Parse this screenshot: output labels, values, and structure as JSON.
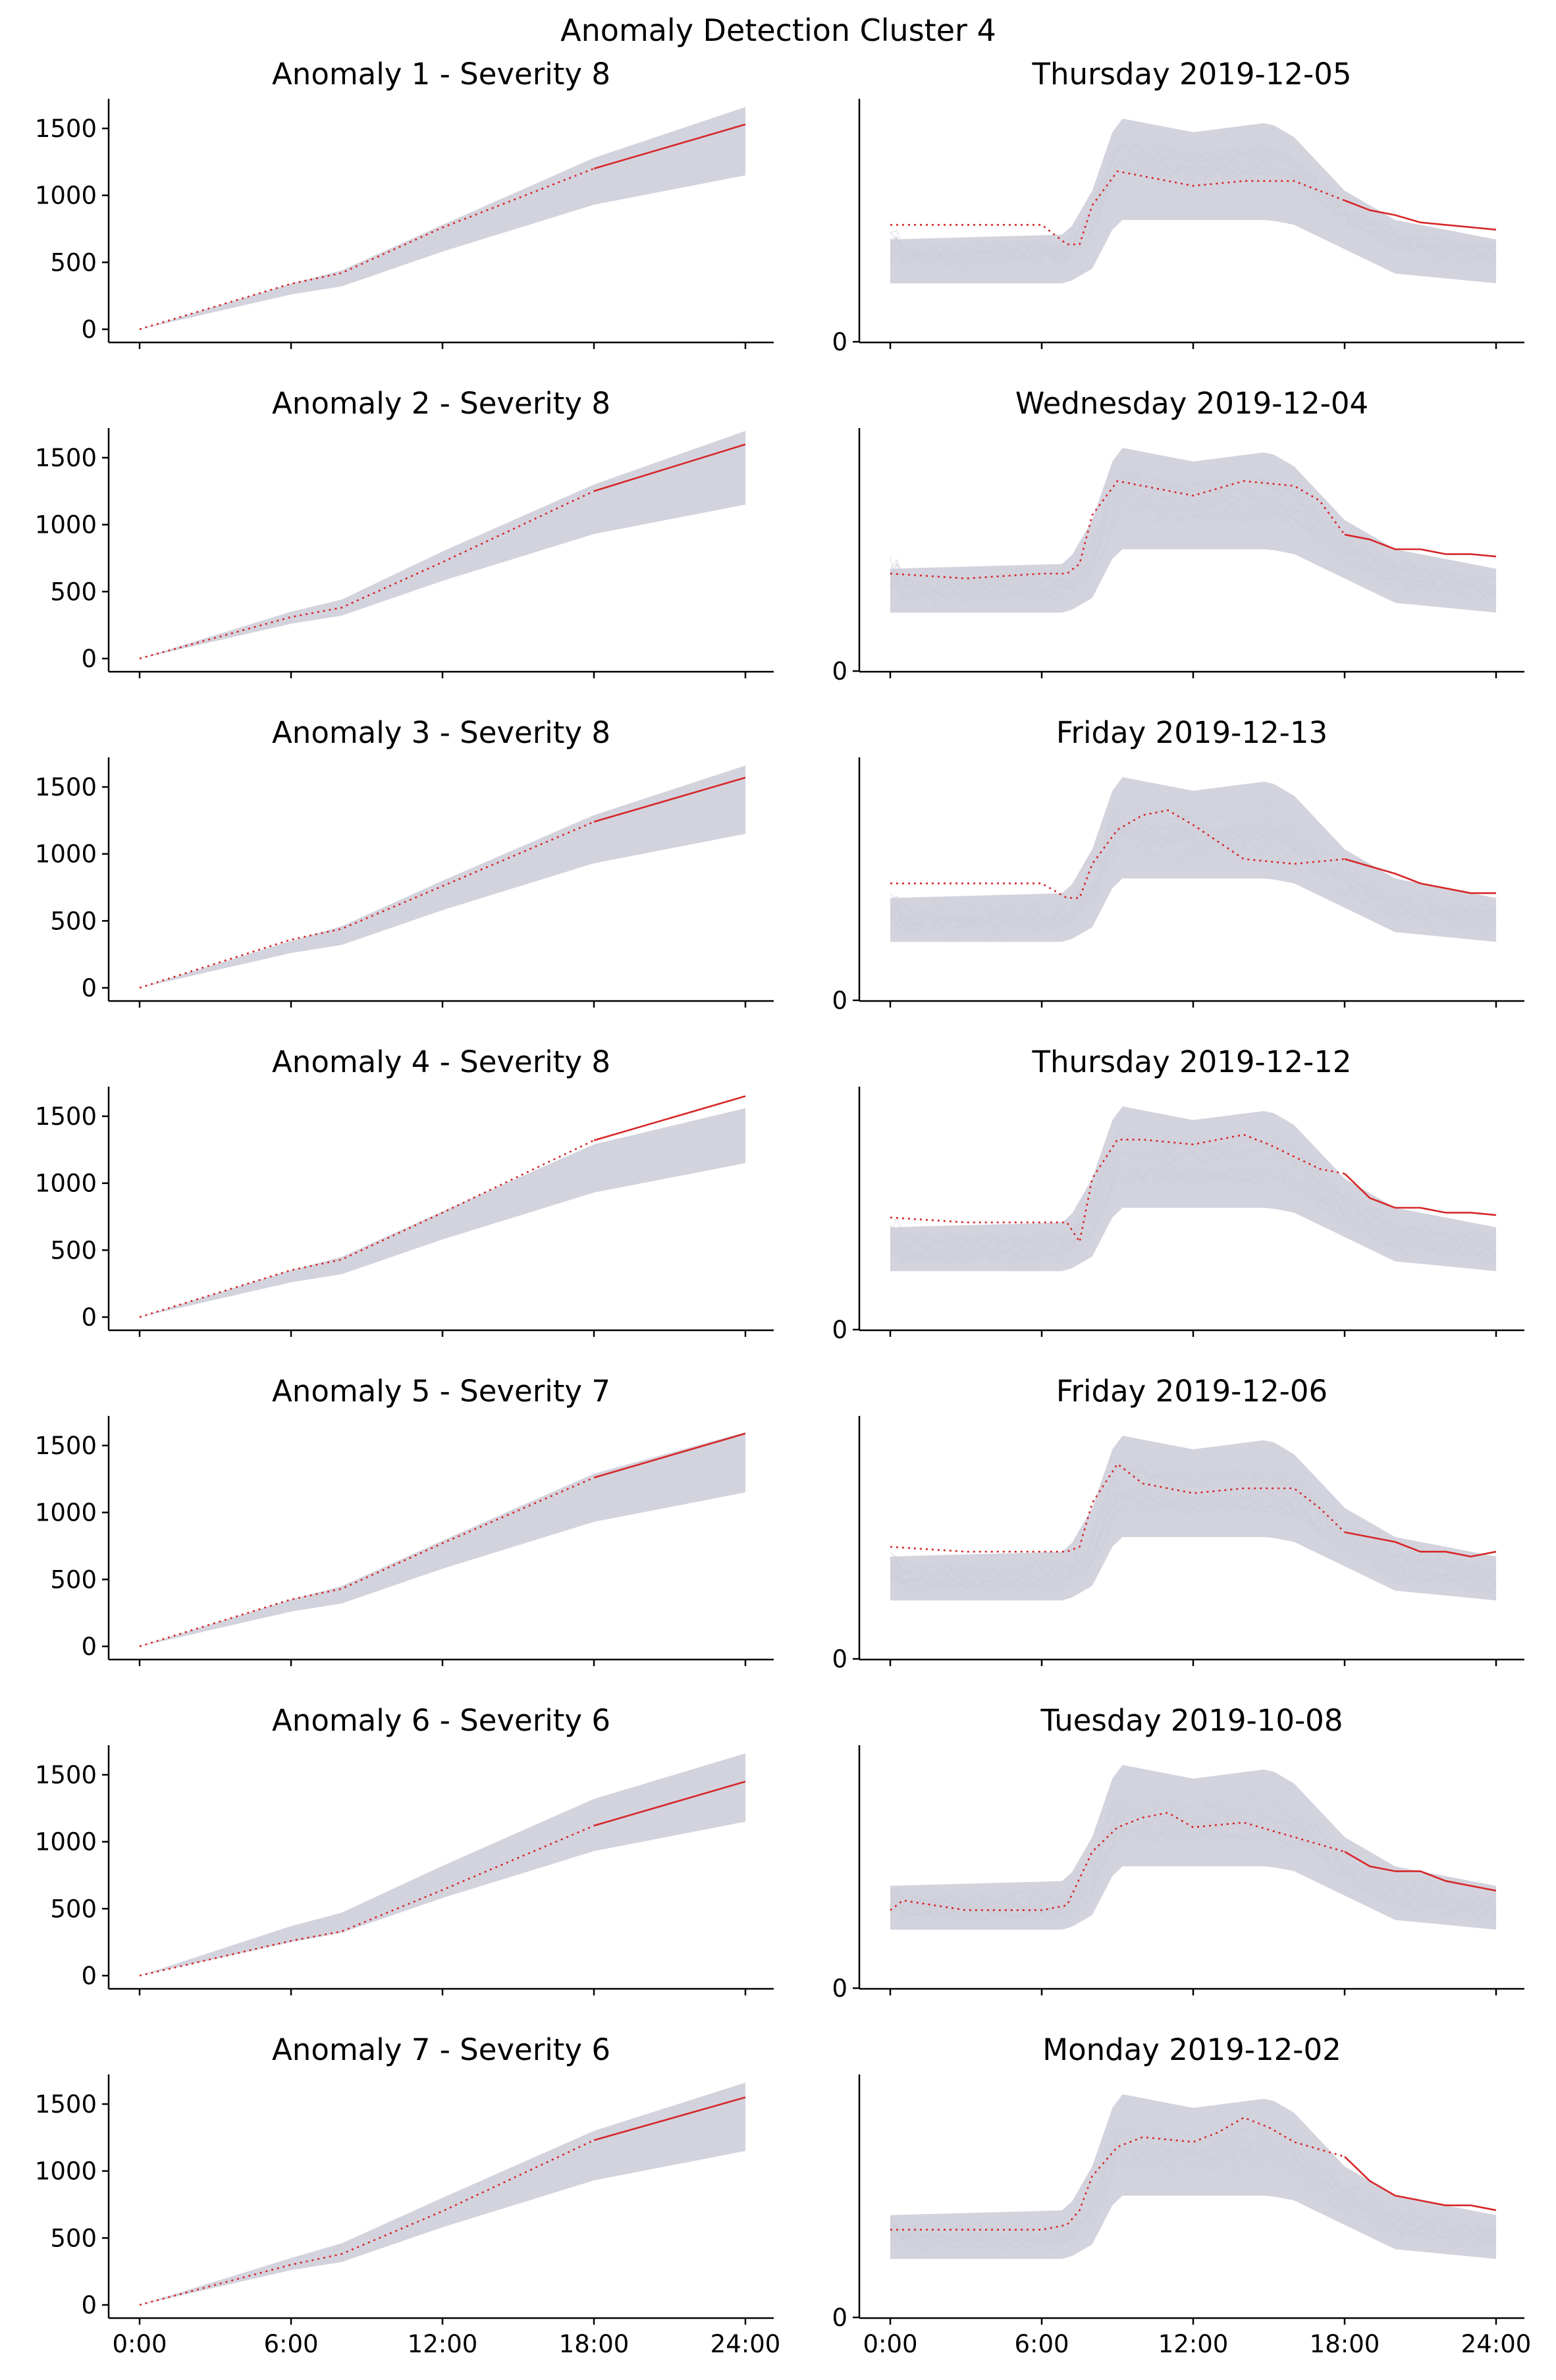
{
  "figure": {
    "suptitle": "Anomaly Detection Cluster 4"
  },
  "colors": {
    "anomaly": "#d62728",
    "history": "#cdcdd8",
    "band": "#d3d3de"
  },
  "chart_data": [
    {
      "panel": "cumulative",
      "type": "line",
      "title": "Anomaly 1 - Severity 8",
      "x": [
        "0:00",
        "6:00",
        "12:00",
        "18:00",
        "24:00"
      ],
      "xlim": [
        0,
        24
      ],
      "ylim": [
        0,
        1750
      ],
      "yticks": [
        0,
        500,
        1000,
        1500
      ],
      "grid": false,
      "band": {
        "x": [
          0,
          6,
          8,
          12,
          18,
          24
        ],
        "lower": [
          0,
          260,
          320,
          580,
          930,
          1150
        ],
        "upper": [
          0,
          340,
          440,
          780,
          1280,
          1660
        ]
      },
      "series": [
        {
          "x": [
            0,
            6,
            8,
            12,
            18,
            24
          ],
          "y": [
            0,
            340,
            420,
            760,
            1200,
            1530
          ],
          "observed_from": 18
        }
      ]
    },
    {
      "panel": "daily",
      "type": "line",
      "title": "Thursday 2019-12-05",
      "xlim": [
        0,
        24
      ],
      "yticks": [
        0
      ],
      "grid": false,
      "band": {
        "x": [
          0,
          7,
          8,
          9,
          12,
          15,
          16,
          18,
          20,
          24
        ],
        "lower": [
          0.24,
          0.24,
          0.3,
          0.5,
          0.5,
          0.5,
          0.48,
          0.38,
          0.28,
          0.24
        ],
        "upper": [
          0.42,
          0.44,
          0.62,
          0.92,
          0.86,
          0.9,
          0.84,
          0.62,
          0.5,
          0.42
        ]
      },
      "series": [
        {
          "x": [
            0,
            3,
            6,
            7,
            7.5,
            8,
            9,
            10,
            12,
            14,
            16,
            17,
            18,
            19,
            20,
            21,
            22,
            23,
            24
          ],
          "y": [
            0.48,
            0.48,
            0.48,
            0.4,
            0.4,
            0.56,
            0.7,
            0.68,
            0.64,
            0.66,
            0.66,
            0.62,
            0.58,
            0.54,
            0.52,
            0.49,
            0.48,
            0.47,
            0.46
          ],
          "observed_from": 18
        }
      ]
    },
    {
      "panel": "cumulative",
      "type": "line",
      "title": "Anomaly 2 - Severity 8",
      "x": [
        "0:00",
        "6:00",
        "12:00",
        "18:00",
        "24:00"
      ],
      "xlim": [
        0,
        24
      ],
      "ylim": [
        0,
        1750
      ],
      "yticks": [
        0,
        500,
        1000,
        1500
      ],
      "grid": false,
      "band": {
        "x": [
          0,
          6,
          8,
          12,
          18,
          24
        ],
        "lower": [
          0,
          260,
          320,
          580,
          930,
          1150
        ],
        "upper": [
          0,
          350,
          440,
          800,
          1300,
          1700
        ]
      },
      "series": [
        {
          "x": [
            0,
            6,
            8,
            12,
            18,
            24
          ],
          "y": [
            0,
            310,
            380,
            720,
            1250,
            1600
          ],
          "observed_from": 18
        }
      ]
    },
    {
      "panel": "daily",
      "type": "line",
      "title": "Wednesday 2019-12-04",
      "xlim": [
        0,
        24
      ],
      "yticks": [
        0
      ],
      "grid": false,
      "band": {
        "x": [
          0,
          7,
          8,
          9,
          12,
          15,
          16,
          18,
          20,
          24
        ],
        "lower": [
          0.24,
          0.24,
          0.3,
          0.5,
          0.5,
          0.5,
          0.48,
          0.38,
          0.28,
          0.24
        ],
        "upper": [
          0.42,
          0.44,
          0.62,
          0.92,
          0.86,
          0.9,
          0.84,
          0.62,
          0.5,
          0.42
        ]
      },
      "series": [
        {
          "x": [
            0,
            3,
            6,
            7,
            7.5,
            8,
            9,
            10,
            12,
            14,
            16,
            17,
            18,
            19,
            20,
            21,
            22,
            23,
            24
          ],
          "y": [
            0.4,
            0.38,
            0.4,
            0.4,
            0.44,
            0.64,
            0.78,
            0.76,
            0.72,
            0.78,
            0.76,
            0.7,
            0.56,
            0.54,
            0.5,
            0.5,
            0.48,
            0.48,
            0.47
          ],
          "observed_from": 18
        }
      ]
    },
    {
      "panel": "cumulative",
      "type": "line",
      "title": "Anomaly 3 - Severity 8",
      "x": [
        "0:00",
        "6:00",
        "12:00",
        "18:00",
        "24:00"
      ],
      "xlim": [
        0,
        24
      ],
      "ylim": [
        0,
        1750
      ],
      "yticks": [
        0,
        500,
        1000,
        1500
      ],
      "grid": false,
      "band": {
        "x": [
          0,
          6,
          8,
          12,
          18,
          24
        ],
        "lower": [
          0,
          260,
          320,
          580,
          930,
          1150
        ],
        "upper": [
          0,
          350,
          460,
          800,
          1290,
          1660
        ]
      },
      "series": [
        {
          "x": [
            0,
            6,
            8,
            12,
            18,
            24
          ],
          "y": [
            0,
            360,
            440,
            760,
            1240,
            1570
          ],
          "observed_from": 18
        }
      ]
    },
    {
      "panel": "daily",
      "type": "line",
      "title": "Friday 2019-12-13",
      "xlim": [
        0,
        24
      ],
      "yticks": [
        0
      ],
      "grid": false,
      "band": {
        "x": [
          0,
          7,
          8,
          9,
          12,
          15,
          16,
          18,
          20,
          24
        ],
        "lower": [
          0.24,
          0.24,
          0.3,
          0.5,
          0.5,
          0.5,
          0.48,
          0.38,
          0.28,
          0.24
        ],
        "upper": [
          0.42,
          0.44,
          0.62,
          0.92,
          0.86,
          0.9,
          0.84,
          0.62,
          0.5,
          0.42
        ]
      },
      "series": [
        {
          "x": [
            0,
            3,
            6,
            7,
            7.5,
            8,
            9,
            10,
            11,
            12,
            14,
            16,
            18,
            19,
            20,
            21,
            22,
            23,
            24
          ],
          "y": [
            0.48,
            0.48,
            0.48,
            0.42,
            0.42,
            0.56,
            0.7,
            0.76,
            0.78,
            0.72,
            0.58,
            0.56,
            0.58,
            0.55,
            0.52,
            0.48,
            0.46,
            0.44,
            0.44
          ],
          "observed_from": 18
        }
      ]
    },
    {
      "panel": "cumulative",
      "type": "line",
      "title": "Anomaly 4 - Severity 8",
      "x": [
        "0:00",
        "6:00",
        "12:00",
        "18:00",
        "24:00"
      ],
      "xlim": [
        0,
        24
      ],
      "ylim": [
        0,
        1750
      ],
      "yticks": [
        0,
        500,
        1000,
        1500
      ],
      "grid": false,
      "band": {
        "x": [
          0,
          6,
          8,
          12,
          18,
          24
        ],
        "lower": [
          0,
          260,
          320,
          580,
          930,
          1150
        ],
        "upper": [
          0,
          350,
          450,
          790,
          1290,
          1560
        ]
      },
      "series": [
        {
          "x": [
            0,
            6,
            8,
            12,
            18,
            24
          ],
          "y": [
            0,
            350,
            430,
            780,
            1320,
            1650
          ],
          "observed_from": 18
        }
      ]
    },
    {
      "panel": "daily",
      "type": "line",
      "title": "Thursday 2019-12-12",
      "xlim": [
        0,
        24
      ],
      "yticks": [
        0
      ],
      "grid": false,
      "band": {
        "x": [
          0,
          7,
          8,
          9,
          12,
          15,
          16,
          18,
          20,
          24
        ],
        "lower": [
          0.24,
          0.24,
          0.3,
          0.5,
          0.5,
          0.5,
          0.48,
          0.38,
          0.28,
          0.24
        ],
        "upper": [
          0.42,
          0.44,
          0.62,
          0.92,
          0.86,
          0.9,
          0.84,
          0.62,
          0.5,
          0.42
        ]
      },
      "series": [
        {
          "x": [
            0,
            3,
            6,
            7,
            7.5,
            8,
            9,
            10,
            12,
            14,
            15,
            17,
            18,
            19,
            20,
            21,
            22,
            23,
            24
          ],
          "y": [
            0.46,
            0.44,
            0.44,
            0.44,
            0.36,
            0.62,
            0.78,
            0.78,
            0.76,
            0.8,
            0.76,
            0.66,
            0.64,
            0.54,
            0.5,
            0.5,
            0.48,
            0.48,
            0.47
          ],
          "observed_from": 18
        }
      ]
    },
    {
      "panel": "cumulative",
      "type": "line",
      "title": "Anomaly 5 - Severity 7",
      "x": [
        "0:00",
        "6:00",
        "12:00",
        "18:00",
        "24:00"
      ],
      "xlim": [
        0,
        24
      ],
      "ylim": [
        0,
        1750
      ],
      "yticks": [
        0,
        500,
        1000,
        1500
      ],
      "grid": false,
      "band": {
        "x": [
          0,
          6,
          8,
          12,
          18,
          24
        ],
        "lower": [
          0,
          260,
          320,
          580,
          930,
          1150
        ],
        "upper": [
          0,
          350,
          450,
          790,
          1290,
          1600
        ]
      },
      "series": [
        {
          "x": [
            0,
            6,
            8,
            12,
            18,
            24
          ],
          "y": [
            0,
            350,
            430,
            770,
            1260,
            1590
          ],
          "observed_from": 18
        }
      ]
    },
    {
      "panel": "daily",
      "type": "line",
      "title": "Friday 2019-12-06",
      "xlim": [
        0,
        24
      ],
      "yticks": [
        0
      ],
      "grid": false,
      "band": {
        "x": [
          0,
          7,
          8,
          9,
          12,
          15,
          16,
          18,
          20,
          24
        ],
        "lower": [
          0.24,
          0.24,
          0.3,
          0.5,
          0.5,
          0.5,
          0.48,
          0.38,
          0.28,
          0.24
        ],
        "upper": [
          0.42,
          0.44,
          0.62,
          0.92,
          0.86,
          0.9,
          0.84,
          0.62,
          0.5,
          0.42
        ]
      },
      "series": [
        {
          "x": [
            0,
            3,
            6,
            7,
            7.5,
            8,
            9,
            10,
            12,
            14,
            16,
            17,
            18,
            19,
            20,
            21,
            22,
            23,
            24
          ],
          "y": [
            0.46,
            0.44,
            0.44,
            0.44,
            0.46,
            0.64,
            0.8,
            0.72,
            0.68,
            0.7,
            0.7,
            0.62,
            0.52,
            0.5,
            0.48,
            0.44,
            0.44,
            0.42,
            0.44
          ],
          "observed_from": 18
        }
      ]
    },
    {
      "panel": "cumulative",
      "type": "line",
      "title": "Anomaly 6 - Severity 6",
      "x": [
        "0:00",
        "6:00",
        "12:00",
        "18:00",
        "24:00"
      ],
      "xlim": [
        0,
        24
      ],
      "ylim": [
        0,
        1750
      ],
      "yticks": [
        0,
        500,
        1000,
        1500
      ],
      "grid": false,
      "band": {
        "x": [
          0,
          6,
          8,
          12,
          18,
          24
        ],
        "lower": [
          0,
          250,
          320,
          580,
          930,
          1150
        ],
        "upper": [
          0,
          370,
          470,
          820,
          1320,
          1660
        ]
      },
      "series": [
        {
          "x": [
            0,
            6,
            8,
            12,
            18,
            24
          ],
          "y": [
            0,
            260,
            330,
            640,
            1120,
            1450
          ],
          "observed_from": 18
        }
      ]
    },
    {
      "panel": "daily",
      "type": "line",
      "title": "Tuesday 2019-10-08",
      "xlim": [
        0,
        24
      ],
      "yticks": [
        0
      ],
      "grid": false,
      "band": {
        "x": [
          0,
          7,
          8,
          9,
          12,
          15,
          16,
          18,
          20,
          24
        ],
        "lower": [
          0.24,
          0.24,
          0.3,
          0.5,
          0.5,
          0.5,
          0.48,
          0.38,
          0.28,
          0.24
        ],
        "upper": [
          0.42,
          0.44,
          0.62,
          0.92,
          0.86,
          0.9,
          0.84,
          0.62,
          0.5,
          0.42
        ]
      },
      "series": [
        {
          "x": [
            0,
            0.5,
            3,
            6,
            7,
            8,
            9,
            10,
            11,
            12,
            14,
            16,
            18,
            19,
            20,
            21,
            22,
            23,
            24
          ],
          "y": [
            0.32,
            0.36,
            0.32,
            0.32,
            0.34,
            0.56,
            0.66,
            0.7,
            0.72,
            0.66,
            0.68,
            0.62,
            0.56,
            0.5,
            0.48,
            0.48,
            0.44,
            0.42,
            0.4
          ],
          "observed_from": 18
        }
      ]
    },
    {
      "panel": "cumulative",
      "type": "line",
      "title": "Anomaly 7 - Severity 6",
      "x": [
        "0:00",
        "6:00",
        "12:00",
        "18:00",
        "24:00"
      ],
      "xlim": [
        0,
        24
      ],
      "ylim": [
        0,
        1750
      ],
      "yticks": [
        0,
        500,
        1000,
        1500
      ],
      "grid": false,
      "band": {
        "x": [
          0,
          6,
          8,
          12,
          18,
          24
        ],
        "lower": [
          0,
          260,
          320,
          580,
          930,
          1150
        ],
        "upper": [
          0,
          350,
          460,
          800,
          1300,
          1660
        ]
      },
      "series": [
        {
          "x": [
            0,
            6,
            8,
            12,
            18,
            24
          ],
          "y": [
            0,
            300,
            380,
            700,
            1230,
            1550
          ],
          "observed_from": 18
        }
      ]
    },
    {
      "panel": "daily",
      "type": "line",
      "title": "Monday 2019-12-02",
      "xlim": [
        0,
        24
      ],
      "yticks": [
        0
      ],
      "grid": false,
      "band": {
        "x": [
          0,
          7,
          8,
          9,
          12,
          15,
          16,
          18,
          20,
          24
        ],
        "lower": [
          0.24,
          0.24,
          0.3,
          0.5,
          0.5,
          0.5,
          0.48,
          0.38,
          0.28,
          0.24
        ],
        "upper": [
          0.42,
          0.44,
          0.62,
          0.92,
          0.86,
          0.9,
          0.84,
          0.62,
          0.5,
          0.42
        ]
      },
      "series": [
        {
          "x": [
            0,
            3,
            6,
            7,
            7.5,
            8,
            9,
            10,
            12,
            13,
            14,
            15,
            16,
            18,
            19,
            20,
            21,
            22,
            23,
            24
          ],
          "y": [
            0.36,
            0.36,
            0.36,
            0.38,
            0.44,
            0.58,
            0.7,
            0.74,
            0.72,
            0.76,
            0.82,
            0.78,
            0.72,
            0.66,
            0.56,
            0.5,
            0.48,
            0.46,
            0.46,
            0.44
          ],
          "observed_from": 18
        }
      ]
    }
  ]
}
